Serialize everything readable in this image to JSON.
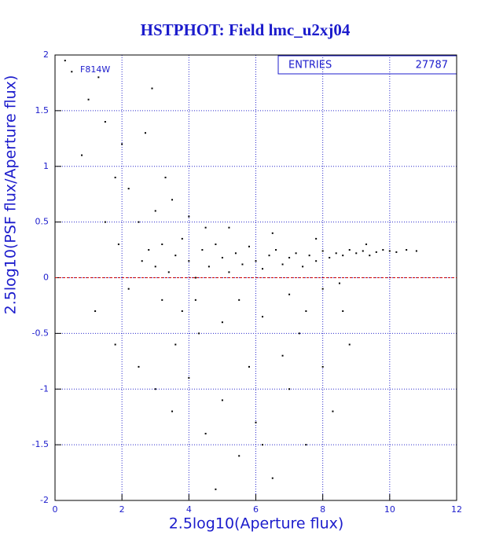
{
  "chart_data": {
    "type": "scatter",
    "title": "HSTPHOT: Field lmc_u2xj04",
    "x_label": "2.5log10(Aperture flux)",
    "y_label": "2.5log10(PSF flux/Aperture flux)",
    "annotation": "F814W",
    "stats": {
      "label": "ENTRIES",
      "value": 27787
    },
    "xlim": [
      0,
      12
    ],
    "ylim": [
      -2,
      2
    ],
    "xticks": [
      0,
      2,
      4,
      6,
      8,
      10,
      12
    ],
    "yticks": [
      -2,
      -1.5,
      -1,
      -0.5,
      0,
      0.5,
      1,
      1.5,
      2
    ],
    "grid": true,
    "reference_line": 0,
    "color": "#000000",
    "x": [
      2.6,
      2.8,
      3.0,
      3.2,
      3.4,
      3.6,
      3.8,
      4.0,
      4.2,
      4.4,
      4.6,
      4.8,
      5.0,
      5.2,
      5.4,
      5.6,
      5.8,
      6.0,
      6.2,
      6.4,
      6.6,
      6.8,
      7.0,
      7.2,
      7.4,
      7.6,
      7.8,
      8.0,
      8.2,
      8.4,
      8.6,
      8.8,
      9.0,
      9.2,
      9.4,
      9.6,
      9.8,
      10.0,
      10.2,
      10.5,
      10.8,
      2.5,
      3.0,
      3.5,
      4.0,
      4.5,
      3.2,
      3.8,
      4.3,
      5.0,
      5.5,
      6.2,
      7.0,
      7.5,
      8.0,
      8.5,
      2.2,
      2.0,
      1.8,
      1.5,
      1.0,
      0.5,
      0.8,
      2.2,
      1.9,
      1.5,
      1.2,
      1.8,
      2.5,
      3.0,
      3.5,
      4.0,
      4.5,
      5.0,
      5.5,
      6.0,
      6.5,
      7.0,
      7.5,
      8.0,
      8.3,
      8.8,
      4.8,
      6.8,
      3.3,
      2.7,
      5.2,
      6.5,
      7.8,
      9.3,
      0.3,
      1.3,
      2.9,
      6.2,
      5.8,
      4.2,
      3.6,
      7.3,
      8.6
    ],
    "values": [
      0.15,
      0.25,
      0.1,
      0.3,
      0.05,
      0.2,
      0.35,
      0.15,
      0.0,
      0.25,
      0.1,
      0.3,
      0.18,
      0.05,
      0.22,
      0.12,
      0.28,
      0.15,
      0.08,
      0.2,
      0.25,
      0.12,
      0.18,
      0.22,
      0.1,
      0.2,
      0.15,
      0.24,
      0.18,
      0.22,
      0.2,
      0.25,
      0.22,
      0.24,
      0.2,
      0.23,
      0.25,
      0.24,
      0.23,
      0.25,
      0.24,
      0.5,
      0.6,
      0.7,
      0.55,
      0.45,
      -0.2,
      -0.3,
      -0.5,
      -0.4,
      -0.2,
      -0.35,
      -0.15,
      -0.3,
      -0.1,
      -0.05,
      0.8,
      1.2,
      0.9,
      1.4,
      1.6,
      1.85,
      1.1,
      -0.1,
      0.3,
      0.5,
      -0.3,
      -0.6,
      -0.8,
      -1.0,
      -1.2,
      -0.9,
      -1.4,
      -1.1,
      -1.6,
      -1.3,
      -1.8,
      -1.0,
      -1.5,
      -0.8,
      -1.2,
      -0.6,
      -1.9,
      -0.7,
      0.9,
      1.3,
      0.45,
      0.4,
      0.35,
      0.3,
      1.95,
      1.8,
      1.7,
      -1.5,
      -0.8,
      -0.2,
      -0.6,
      -0.5,
      -0.3
    ]
  }
}
